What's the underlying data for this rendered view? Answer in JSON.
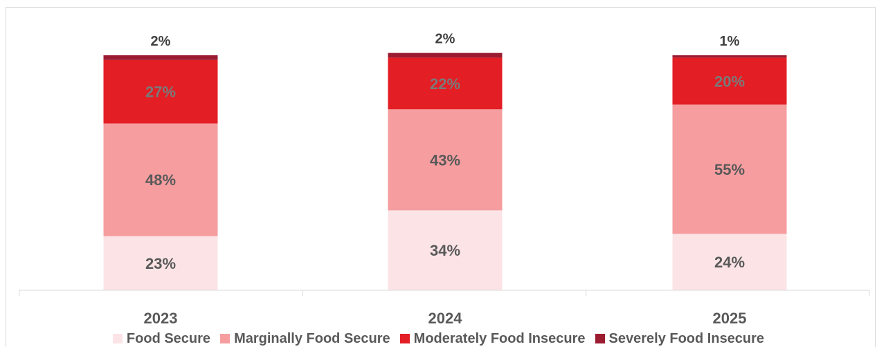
{
  "chart_data": {
    "type": "bar",
    "stacked": true,
    "categories": [
      "2023",
      "2024",
      "2025"
    ],
    "series": [
      {
        "name": "Food Secure",
        "values": [
          23,
          34,
          24
        ],
        "labels": [
          "23%",
          "34%",
          "24%"
        ],
        "color": "#fce4e6",
        "label_color": "#595959"
      },
      {
        "name": "Marginally Food Secure",
        "values": [
          48,
          43,
          55
        ],
        "labels": [
          "48%",
          "43%",
          "55%"
        ],
        "color": "#f59d9f",
        "label_color": "#595959"
      },
      {
        "name": "Moderately Food Insecure",
        "values": [
          27,
          22,
          20
        ],
        "labels": [
          "27%",
          "22%",
          "20%"
        ],
        "color": "#e31e24",
        "label_color": "#7a7a7a"
      },
      {
        "name": "Severely Food Insecure",
        "values": [
          2,
          2,
          1
        ],
        "labels": [
          "2%",
          "2%",
          "1%"
        ],
        "color": "#9b1b30",
        "label_color": "#404040"
      }
    ],
    "ylim": [
      0,
      100
    ],
    "grid": false,
    "legend_position": "bottom"
  }
}
